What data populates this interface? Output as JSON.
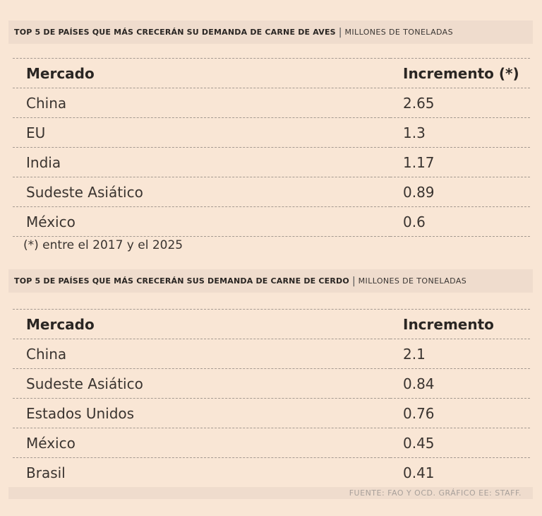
{
  "chart_data": [
    {
      "type": "table",
      "title": "TOP 5 DE PAÍSES QUE MÁS CRECERÁN SU DEMANDA DE CARNE DE AVES",
      "unit": "MILLONES DE TONELADAS",
      "columns": [
        "Mercado",
        "Incremento (*)"
      ],
      "rows": [
        {
          "market": "China",
          "value": "2.65"
        },
        {
          "market": "EU",
          "value": "1.3"
        },
        {
          "market": "India",
          "value": "1.17"
        },
        {
          "market": "Sudeste Asiático",
          "value": "0.89"
        },
        {
          "market": "México",
          "value": "0.6"
        }
      ],
      "footnote": "(*) entre el 2017 y el 2025"
    },
    {
      "type": "table",
      "title": "TOP 5 DE PAÍSES QUE MÁS CRECERÁN SUS DEMANDA DE CARNE DE CERDO",
      "unit": "MILLONES DE TONELADAS",
      "columns": [
        "Mercado",
        "Incremento"
      ],
      "rows": [
        {
          "market": "China",
          "value": "2.1"
        },
        {
          "market": "Sudeste Asiático",
          "value": "0.84"
        },
        {
          "market": "Estados Unidos",
          "value": "0.76"
        },
        {
          "market": "México",
          "value": "0.45"
        },
        {
          "market": "Brasil",
          "value": "0.41"
        }
      ]
    }
  ],
  "source": "FUENTE: FAO Y OCD. GRÁFICO EE: STAFF."
}
